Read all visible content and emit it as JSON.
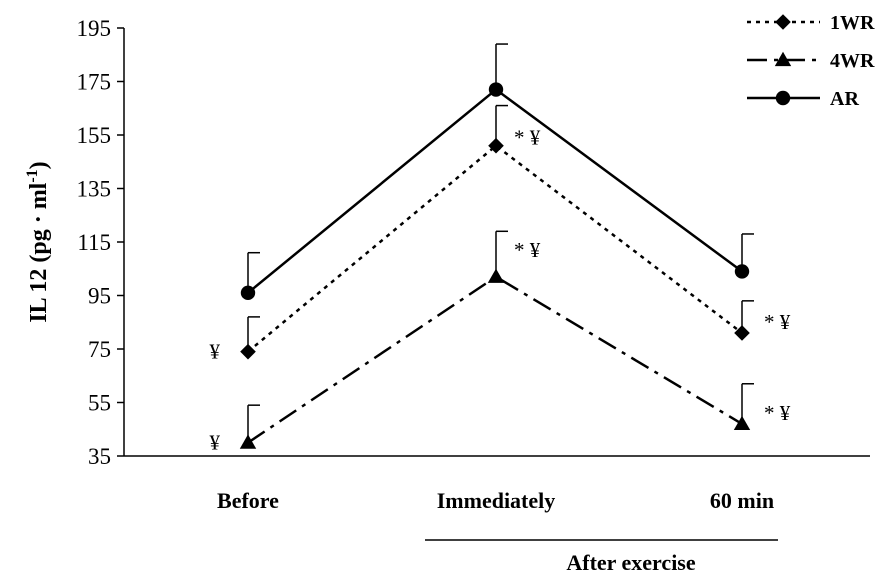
{
  "chart_data": {
    "type": "line",
    "categories": [
      "Before",
      "Immediately",
      "60 min"
    ],
    "group_label": "After exercise",
    "ylabel": "IL 12 (pg · ml",
    "ylabel_superscript": "-1",
    "ylabel_close": ")",
    "ylim": [
      35,
      195
    ],
    "yticks": [
      35,
      55,
      75,
      95,
      115,
      135,
      155,
      175,
      195
    ],
    "grid": false,
    "legend_position": "top-right",
    "series": [
      {
        "name": "1WR",
        "values": [
          74,
          151,
          81
        ],
        "errors": [
          13,
          15,
          12
        ],
        "marker": "diamond",
        "line_style": "dotted",
        "annotations": [
          "¥",
          "* ¥",
          "* ¥"
        ]
      },
      {
        "name": "4WR",
        "values": [
          40,
          102,
          47
        ],
        "errors": [
          14,
          17,
          15
        ],
        "marker": "triangle",
        "line_style": "dash-dot",
        "annotations": [
          "¥",
          "* ¥",
          "* ¥"
        ]
      },
      {
        "name": "AR",
        "values": [
          96,
          172,
          104
        ],
        "errors": [
          15,
          17,
          14
        ],
        "marker": "circle",
        "line_style": "solid",
        "annotations": [
          "",
          "",
          ""
        ]
      }
    ]
  }
}
